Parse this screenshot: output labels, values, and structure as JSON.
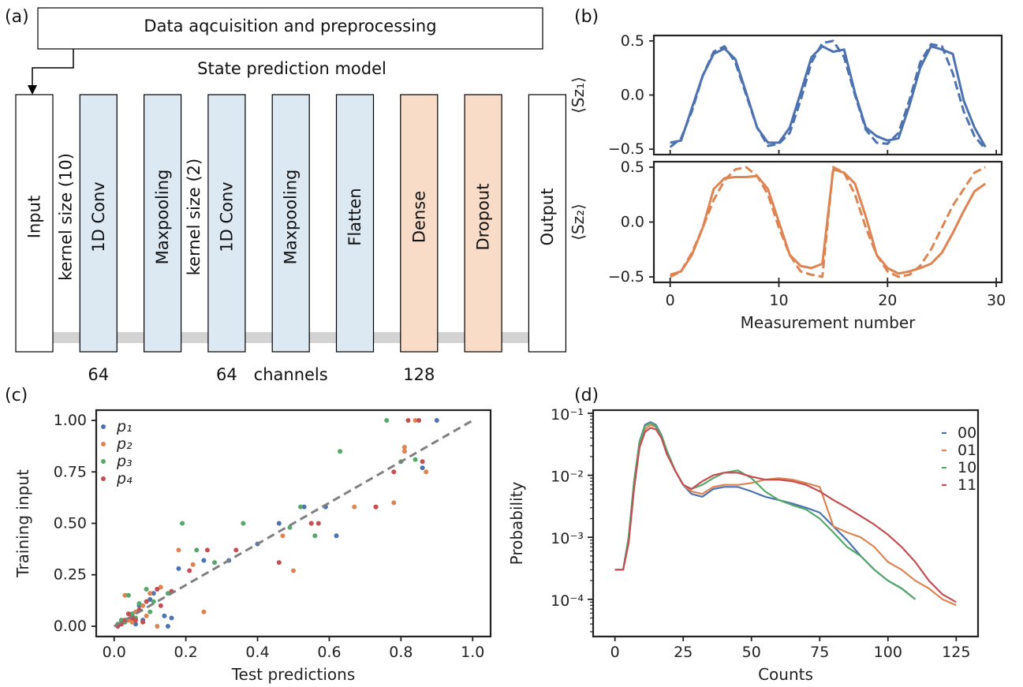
{
  "panel_labels": [
    "(a)",
    "(b)",
    "(c)",
    "(d)"
  ],
  "diagram": {
    "top_box": "Data aqcuisition and preprocessing",
    "model_title": "State prediction model",
    "layers": [
      {
        "label": "Input",
        "color": "#ffffff"
      },
      {
        "label": "1D Conv",
        "color": "#dce9f3",
        "side_label": "kernel size (10)",
        "below": "64"
      },
      {
        "label": "Maxpooling",
        "color": "#dce9f3"
      },
      {
        "label": "1D Conv",
        "color": "#dce9f3",
        "side_label": "kernel size (2)",
        "below": "64"
      },
      {
        "label": "Maxpooling",
        "color": "#dce9f3",
        "below": "channels"
      },
      {
        "label": "Flatten",
        "color": "#dce9f3"
      },
      {
        "label": "Dense",
        "color": "#f9dcc8",
        "below": "128"
      },
      {
        "label": "Dropout",
        "color": "#f9dcc8"
      },
      {
        "label": "Output",
        "color": "#ffffff"
      }
    ]
  },
  "chart_data": [
    {
      "id": "b",
      "type": "line",
      "xlabel": "Measurement number",
      "xlim": [
        -1.5,
        30.5
      ],
      "xticks": [
        0,
        10,
        20,
        30
      ],
      "subplots": [
        {
          "ylabel": "⟨Sz₁⟩",
          "ylim": [
            -0.55,
            0.55
          ],
          "yticks": [
            -0.5,
            0.0,
            0.5
          ],
          "color": "#4c72b0",
          "series": [
            {
              "style": "solid",
              "x": [
                0,
                1,
                2,
                3,
                4,
                5,
                6,
                7,
                8,
                9,
                10,
                11,
                12,
                13,
                14,
                15,
                16,
                17,
                18,
                19,
                20,
                21,
                22,
                23,
                24,
                25,
                26,
                27,
                28,
                29
              ],
              "values": [
                -0.44,
                -0.42,
                -0.12,
                0.18,
                0.38,
                0.43,
                0.33,
                0.02,
                -0.3,
                -0.44,
                -0.44,
                -0.3,
                0.02,
                0.35,
                0.45,
                0.4,
                0.42,
                0.02,
                -0.3,
                -0.38,
                -0.42,
                -0.4,
                -0.1,
                0.25,
                0.45,
                0.42,
                0.38,
                -0.05,
                -0.3,
                -0.48
              ]
            },
            {
              "style": "dashed",
              "x": [
                0,
                1,
                2,
                3,
                4,
                5,
                6,
                7,
                8,
                9,
                10,
                11,
                12,
                13,
                14,
                15,
                16,
                17,
                18,
                19,
                20,
                21,
                22,
                23,
                24,
                25,
                26,
                27,
                28,
                29
              ],
              "values": [
                -0.48,
                -0.4,
                -0.15,
                0.18,
                0.4,
                0.45,
                0.3,
                0.0,
                -0.3,
                -0.47,
                -0.45,
                -0.35,
                -0.05,
                0.3,
                0.48,
                0.5,
                0.35,
                0.0,
                -0.32,
                -0.44,
                -0.45,
                -0.35,
                -0.05,
                0.3,
                0.47,
                0.45,
                0.2,
                -0.15,
                -0.38,
                -0.5
              ]
            }
          ]
        },
        {
          "ylabel": "⟨Sz₂⟩",
          "ylim": [
            -0.55,
            0.55
          ],
          "yticks": [
            -0.5,
            0.0,
            0.5
          ],
          "color": "#dd8452",
          "series": [
            {
              "style": "solid",
              "x": [
                0,
                1,
                2,
                3,
                4,
                5,
                6,
                7,
                8,
                9,
                10,
                11,
                12,
                13,
                14,
                15,
                16,
                17,
                18,
                19,
                20,
                21,
                22,
                23,
                24,
                25,
                26,
                27,
                28,
                29
              ],
              "values": [
                -0.48,
                -0.45,
                -0.3,
                -0.05,
                0.3,
                0.4,
                0.41,
                0.41,
                0.42,
                0.3,
                0.0,
                -0.3,
                -0.4,
                -0.42,
                -0.38,
                0.48,
                0.45,
                0.35,
                0.05,
                -0.3,
                -0.42,
                -0.47,
                -0.45,
                -0.42,
                -0.38,
                -0.28,
                -0.1,
                0.1,
                0.28,
                0.35
              ]
            },
            {
              "style": "dashed",
              "x": [
                0,
                1,
                2,
                3,
                4,
                5,
                6,
                7,
                8,
                9,
                10,
                11,
                12,
                13,
                14,
                15,
                16,
                17,
                18,
                19,
                20,
                21,
                22,
                23,
                24,
                25,
                26,
                27,
                28,
                29
              ],
              "values": [
                -0.5,
                -0.45,
                -0.28,
                -0.05,
                0.2,
                0.38,
                0.48,
                0.5,
                0.42,
                0.25,
                -0.05,
                -0.3,
                -0.45,
                -0.48,
                -0.5,
                0.5,
                0.45,
                0.25,
                -0.05,
                -0.3,
                -0.45,
                -0.5,
                -0.48,
                -0.4,
                -0.25,
                -0.05,
                0.15,
                0.3,
                0.45,
                0.5
              ]
            }
          ]
        }
      ]
    },
    {
      "id": "c",
      "type": "scatter",
      "xlabel": "Test predictions",
      "ylabel": "Training input",
      "xlim": [
        -0.05,
        1.05
      ],
      "ylim": [
        -0.05,
        1.05
      ],
      "xticks": [
        0.0,
        0.2,
        0.4,
        0.6,
        0.8,
        1.0
      ],
      "yticks": [
        0.0,
        0.25,
        0.5,
        0.75,
        1.0
      ],
      "diagonal": {
        "x": [
          0,
          1
        ],
        "y": [
          0,
          1
        ],
        "color": "#808080",
        "style": "dashed"
      },
      "legend_position": "top-left",
      "series": [
        {
          "name": "p₁",
          "color": "#4c72b0",
          "x": [
            0.01,
            0.03,
            0.05,
            0.07,
            0.1,
            0.12,
            0.15,
            0.18,
            0.25,
            0.32,
            0.4,
            0.46,
            0.59,
            0.62,
            0.86,
            0.9,
            0.02,
            0.08,
            0.14,
            0.04,
            0.06,
            0.11,
            0.16,
            0.53
          ],
          "y": [
            0.0,
            0.02,
            0.05,
            0.1,
            0.13,
            0.18,
            0.0,
            0.28,
            0.32,
            0.32,
            0.4,
            0.5,
            0.58,
            0.44,
            0.77,
            1.0,
            0.01,
            0.03,
            0.05,
            0.06,
            0.01,
            0.16,
            0.04,
            0.58
          ]
        },
        {
          "name": "p₂",
          "color": "#dd8452",
          "x": [
            0.02,
            0.04,
            0.06,
            0.08,
            0.1,
            0.13,
            0.18,
            0.22,
            0.25,
            0.47,
            0.5,
            0.55,
            0.67,
            0.73,
            0.78,
            0.81,
            0.84,
            0.87,
            0.81,
            0.05,
            0.09,
            0.03,
            0.12
          ],
          "y": [
            0.01,
            0.03,
            0.07,
            0.1,
            0.16,
            0.19,
            0.37,
            0.3,
            0.07,
            0.44,
            0.27,
            0.5,
            0.58,
            0.58,
            0.6,
            0.85,
            1.0,
            0.75,
            0.87,
            0.02,
            0.05,
            0.15,
            0.0
          ],
          "note": ""
        },
        {
          "name": "p₃",
          "color": "#55a868",
          "x": [
            0.01,
            0.03,
            0.05,
            0.07,
            0.09,
            0.11,
            0.15,
            0.19,
            0.23,
            0.28,
            0.36,
            0.49,
            0.52,
            0.56,
            0.63,
            0.76,
            0.8,
            0.84,
            0.02,
            0.06,
            0.04,
            0.1
          ],
          "y": [
            0.01,
            0.02,
            0.06,
            0.11,
            0.18,
            0.12,
            0.16,
            0.5,
            0.37,
            0.31,
            0.5,
            0.48,
            0.58,
            0.44,
            0.85,
            1.0,
            0.8,
            0.81,
            0.03,
            0.04,
            0.15,
            0.07
          ]
        },
        {
          "name": "p₄",
          "color": "#c44e52",
          "x": [
            0.01,
            0.03,
            0.05,
            0.07,
            0.09,
            0.12,
            0.16,
            0.21,
            0.26,
            0.34,
            0.46,
            0.55,
            0.57,
            0.73,
            0.78,
            0.82,
            0.85,
            0.86,
            0.02,
            0.06,
            0.08,
            0.13,
            0.04
          ],
          "y": [
            0.0,
            0.03,
            0.04,
            0.08,
            0.12,
            0.18,
            0.17,
            0.27,
            0.37,
            0.37,
            0.31,
            0.5,
            0.5,
            0.58,
            0.75,
            1.0,
            1.0,
            0.8,
            0.01,
            0.03,
            0.02,
            0.1,
            0.06
          ]
        }
      ]
    },
    {
      "id": "d",
      "type": "line",
      "xlabel": "Counts",
      "ylabel": "Probability",
      "yscale": "log",
      "xlim": [
        -8,
        133
      ],
      "ylim_log10": [
        -4.6,
        -0.95
      ],
      "xticks": [
        0,
        25,
        50,
        75,
        100,
        125
      ],
      "yticks": [
        "10⁻¹",
        "10⁻²",
        "10⁻³",
        "10⁻⁴"
      ],
      "legend_position": "top-right",
      "series": [
        {
          "name": "00",
          "color": "#4c72b0",
          "x": [
            0,
            3,
            5,
            7,
            9,
            11,
            13,
            15,
            17,
            19,
            22,
            25,
            28,
            32,
            36,
            40,
            45,
            50,
            55,
            60,
            65,
            70,
            75,
            80,
            85,
            90,
            95,
            100,
            105,
            110
          ],
          "values": [
            0.0003,
            0.0003,
            0.001,
            0.008,
            0.035,
            0.065,
            0.072,
            0.065,
            0.045,
            0.025,
            0.012,
            0.007,
            0.005,
            0.0045,
            0.006,
            0.0065,
            0.0065,
            0.0055,
            0.0045,
            0.004,
            0.0035,
            0.003,
            0.0025,
            0.0015,
            0.0009,
            0.0005,
            0.0003,
            0.0002,
            0.00015,
            0.0001
          ]
        },
        {
          "name": "01",
          "color": "#dd8452",
          "x": [
            0,
            3,
            5,
            7,
            9,
            11,
            13,
            15,
            17,
            19,
            22,
            25,
            28,
            32,
            36,
            40,
            45,
            50,
            55,
            60,
            65,
            70,
            75,
            80,
            85,
            90,
            95,
            100,
            105,
            110,
            115,
            120,
            125
          ],
          "values": [
            0.0003,
            0.0003,
            0.0009,
            0.007,
            0.03,
            0.055,
            0.065,
            0.06,
            0.042,
            0.023,
            0.012,
            0.007,
            0.0055,
            0.005,
            0.0065,
            0.007,
            0.007,
            0.0075,
            0.0085,
            0.009,
            0.0085,
            0.0075,
            0.0065,
            0.0015,
            0.0012,
            0.001,
            0.0007,
            0.0004,
            0.0003,
            0.0002,
            0.00015,
            0.0001,
            8e-05
          ]
        },
        {
          "name": "10",
          "color": "#55a868",
          "x": [
            0,
            3,
            5,
            7,
            9,
            11,
            13,
            15,
            17,
            19,
            22,
            25,
            28,
            32,
            36,
            40,
            45,
            50,
            55,
            60,
            65,
            70,
            75,
            80,
            85,
            90,
            95,
            100,
            105,
            110
          ],
          "values": [
            0.0003,
            0.0003,
            0.001,
            0.008,
            0.034,
            0.062,
            0.07,
            0.062,
            0.044,
            0.025,
            0.012,
            0.007,
            0.006,
            0.007,
            0.009,
            0.011,
            0.012,
            0.009,
            0.0055,
            0.004,
            0.0033,
            0.0028,
            0.002,
            0.0012,
            0.0007,
            0.0005,
            0.0003,
            0.0002,
            0.00015,
            0.0001
          ]
        },
        {
          "name": "11",
          "color": "#c44e52",
          "x": [
            0,
            3,
            5,
            7,
            9,
            11,
            13,
            15,
            17,
            19,
            22,
            25,
            28,
            32,
            36,
            40,
            45,
            50,
            55,
            60,
            65,
            70,
            75,
            80,
            85,
            90,
            95,
            100,
            105,
            110,
            115,
            120,
            125
          ],
          "values": [
            0.0003,
            0.0003,
            0.0008,
            0.006,
            0.028,
            0.05,
            0.058,
            0.055,
            0.04,
            0.022,
            0.012,
            0.007,
            0.006,
            0.008,
            0.01,
            0.011,
            0.011,
            0.0095,
            0.0085,
            0.0085,
            0.008,
            0.007,
            0.0055,
            0.004,
            0.003,
            0.0022,
            0.0016,
            0.0011,
            0.0007,
            0.0004,
            0.0002,
            0.00012,
            9e-05
          ]
        }
      ]
    }
  ]
}
